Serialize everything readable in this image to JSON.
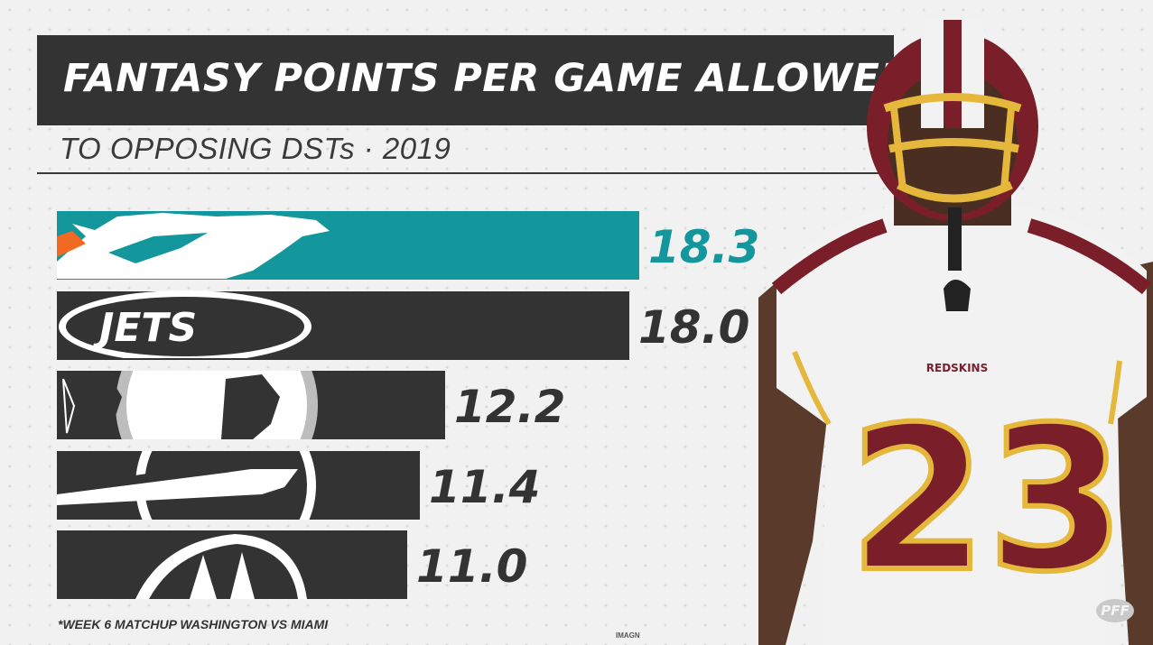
{
  "title": "FANTASY POINTS PER GAME ALLOWED",
  "subtitle": "TO OPPOSING DSTs · 2019",
  "footnote": "*WEEK 6 MATCHUP WASHINGTON VS MIAMI",
  "photo_credit": "IMAGN",
  "brand": "PFF",
  "player_jersey": {
    "team": "REDSKINS",
    "number": "23"
  },
  "colors": {
    "highlight": "#13969c",
    "bar": "#333333",
    "title_bar": "#333333",
    "jersey_red": "#7a1f2a",
    "jersey_gold": "#e5b73b"
  },
  "chart_data": {
    "type": "bar",
    "orientation": "horizontal",
    "categories": [
      "Miami Dolphins",
      "New York Jets",
      "Washington Redskins",
      "Buffalo Bills",
      "Cincinnati Bengals"
    ],
    "category_icons": [
      "dolphins-logo-icon",
      "jets-logo-icon",
      "redskins-logo-icon",
      "bills-logo-icon",
      "bengals-helmet-icon"
    ],
    "values": [
      18.3,
      18.0,
      12.2,
      11.4,
      11.0
    ],
    "value_labels": [
      "18.3",
      "18.0",
      "12.2",
      "11.4",
      "11.0"
    ],
    "highlight_index": 0,
    "title": "FANTASY POINTS PER GAME ALLOWED",
    "subtitle": "TO OPPOSING DSTs · 2019",
    "xlim": [
      0,
      18.3
    ],
    "grid": false,
    "legend": "none"
  }
}
